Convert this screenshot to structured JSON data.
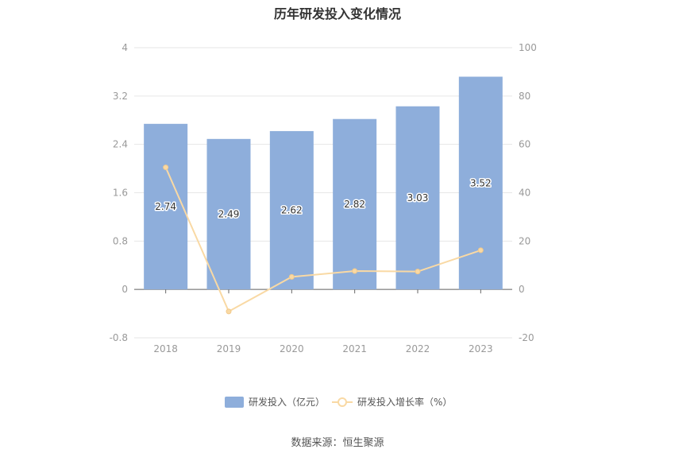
{
  "chart_data": {
    "type": "bar",
    "title": "历年研发投入变化情况",
    "categories": [
      "2018",
      "2019",
      "2020",
      "2021",
      "2022",
      "2023"
    ],
    "series": [
      {
        "name": "研发投入（亿元）",
        "type": "bar",
        "axis": "left",
        "values": [
          2.74,
          2.49,
          2.62,
          2.82,
          3.03,
          3.52
        ],
        "color": "#8eaedb"
      },
      {
        "name": "研发投入增长率（%）",
        "type": "line",
        "axis": "right",
        "values": [
          50.5,
          -9.1,
          5.2,
          7.6,
          7.4,
          16.2
        ],
        "color": "#f9d9a4"
      }
    ],
    "y_left": {
      "ticks": [
        "-0.8",
        "0",
        "0.8",
        "1.6",
        "2.4",
        "3.2",
        "4"
      ],
      "ylim": [
        -0.8,
        4
      ]
    },
    "y_right": {
      "ticks": [
        "-20",
        "0",
        "20",
        "40",
        "60",
        "80",
        "100"
      ],
      "ylim": [
        -20,
        100
      ]
    },
    "grid": true,
    "legend": "bottom-center"
  },
  "source_text": "数据来源：恒生聚源"
}
